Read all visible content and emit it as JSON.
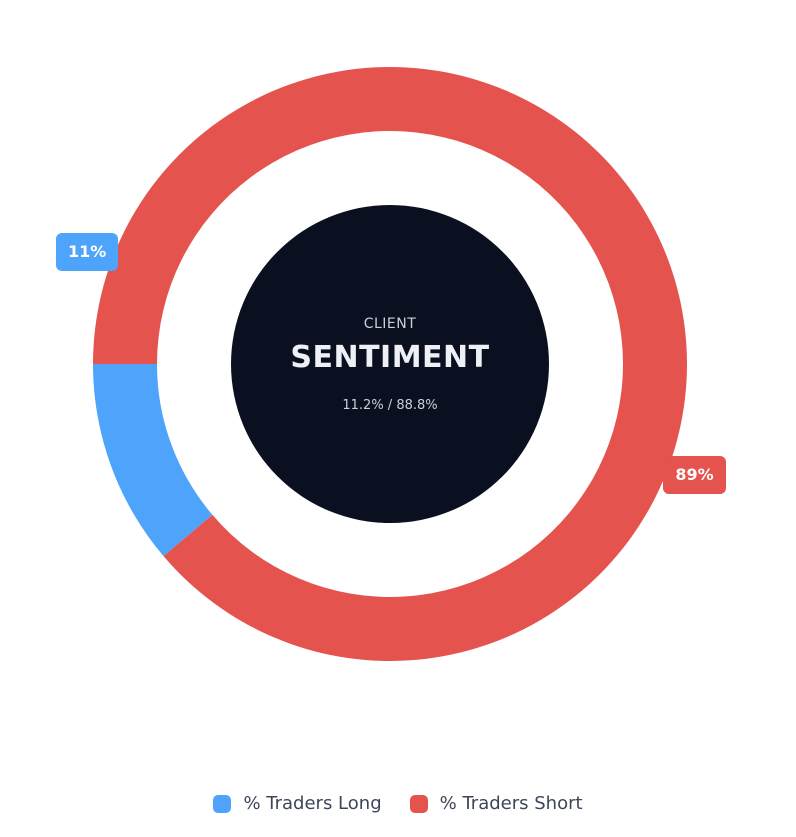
{
  "colors": {
    "long": "#4ea4fb",
    "short": "#e5534f",
    "center": "#0b1020"
  },
  "center_label": {
    "top": "CLIENT",
    "main": "SENTIMENT",
    "sub": "11.2% / 88.8%"
  },
  "chart_data": {
    "type": "pie",
    "title": "",
    "categories": [
      "% Traders Long",
      "% Traders Short"
    ],
    "values": [
      11.2,
      88.8
    ],
    "data_labels": [
      "11%",
      "89%"
    ],
    "legend_position": "bottom-center"
  },
  "legend": {
    "items": [
      {
        "label": "% Traders Long",
        "color": "#4ea4fb"
      },
      {
        "label": "% Traders Short",
        "color": "#e5534f"
      }
    ]
  }
}
